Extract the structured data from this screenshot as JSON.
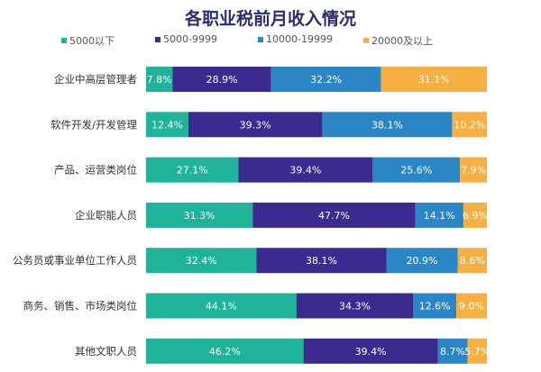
{
  "chart_data": {
    "type": "bar",
    "orientation": "horizontal",
    "stacked": true,
    "title": "各职业税前月收入情况",
    "categories": [
      "企业中高层管理者",
      "软件开发/开发管理",
      "产品、运营类岗位",
      "企业职能人员",
      "公务员或事业单位工作人员",
      "商务、销售、市场类岗位",
      "其他文职人员"
    ],
    "series": [
      {
        "name": "5000以下",
        "color": "#1fb39a",
        "values": [
          7.8,
          12.4,
          27.1,
          31.3,
          32.4,
          44.1,
          46.2
        ]
      },
      {
        "name": "5000-9999",
        "color": "#3b2a8f",
        "values": [
          28.9,
          39.3,
          39.4,
          47.7,
          38.1,
          34.3,
          39.4
        ]
      },
      {
        "name": "10000-19999",
        "color": "#2a86c6",
        "values": [
          32.2,
          38.1,
          25.6,
          14.1,
          20.9,
          12.6,
          8.7
        ]
      },
      {
        "name": "20000及以上",
        "color": "#f6b041",
        "values": [
          31.1,
          10.2,
          7.9,
          6.9,
          8.6,
          9.0,
          5.7
        ]
      }
    ],
    "value_format": "percent",
    "xlim": [
      0,
      100
    ],
    "legend_position": "top",
    "grid": false
  }
}
